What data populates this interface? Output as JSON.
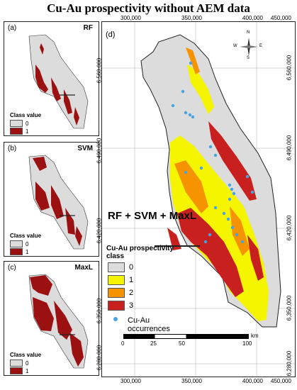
{
  "title": "Cu-Au prospectivity without AEM data",
  "panels": [
    {
      "label": "(a)",
      "name": "RF"
    },
    {
      "label": "(b)",
      "name": "SVM"
    },
    {
      "label": "(c)",
      "name": "MaxL"
    }
  ],
  "small_legend": {
    "title": "Class value",
    "classes": [
      "0",
      "1"
    ]
  },
  "main": {
    "label": "(d)",
    "name": "RF + SVM + MaxL",
    "x_ticks": [
      "300,000",
      "350,000",
      "400,000",
      "450,000"
    ],
    "y_ticks": [
      "6,560,000",
      "6,490,000",
      "6,420,000",
      "6,350,000",
      "6,280,000"
    ],
    "legend_title": "Cu-Au prospectivity class",
    "classes": [
      "0",
      "1",
      "2",
      "3"
    ],
    "occurrence_label": "Cu-Au occurrences",
    "scale_labels": [
      "0",
      "25",
      "50",
      "100"
    ],
    "scale_unit": "km",
    "north": {
      "n": "N",
      "s": "S",
      "e": "E",
      "w": "W"
    }
  },
  "colors": {
    "class0": "#dcdcdc",
    "class1": "#f5f500",
    "class2": "#f59400",
    "class3": "#c8201e",
    "binary1": "#9b1010",
    "occurrence": "#4aa3df"
  }
}
